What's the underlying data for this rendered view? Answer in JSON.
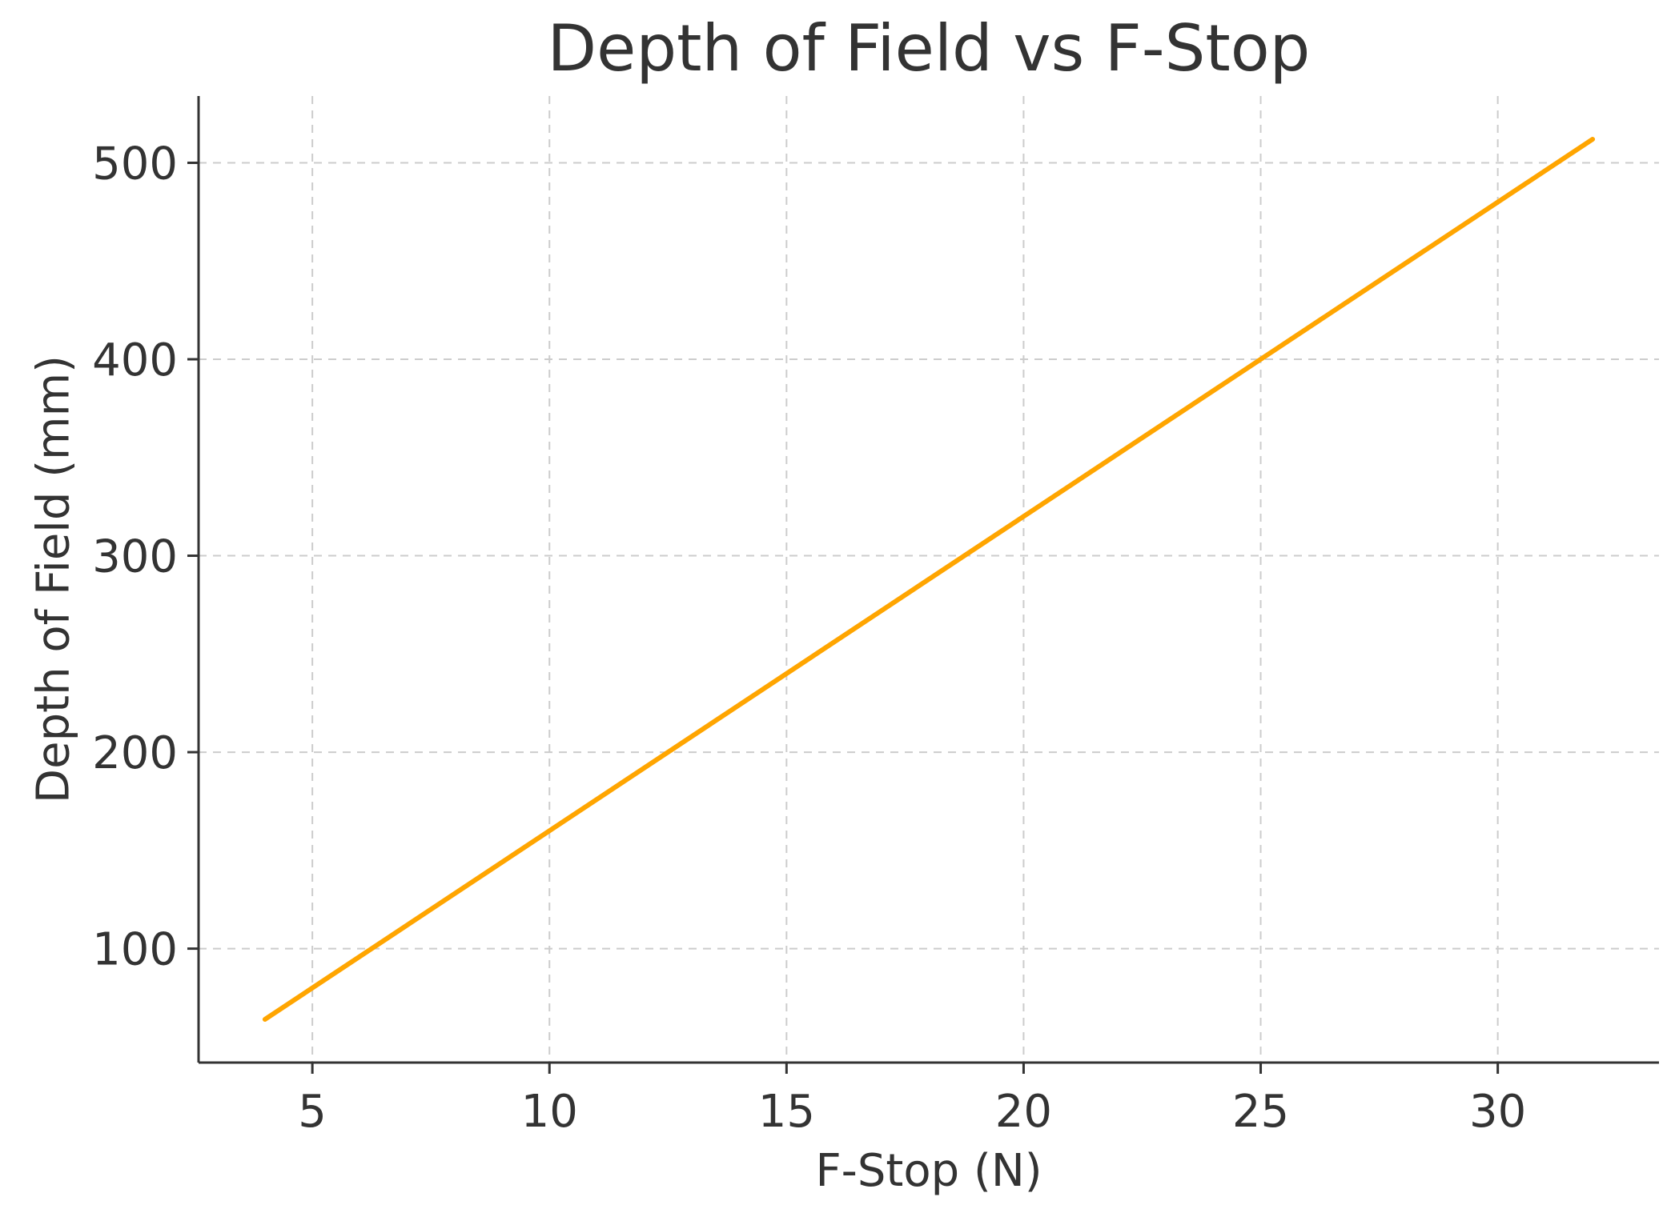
{
  "chart_data": {
    "type": "line",
    "title": "Depth of Field vs F-Stop",
    "xlabel": "F-Stop (N)",
    "ylabel": "Depth of Field (mm)",
    "xlim": [
      2.6,
      33.4
    ],
    "ylim": [
      42,
      534
    ],
    "xticks": [
      5,
      10,
      15,
      20,
      25,
      30
    ],
    "yticks": [
      100,
      200,
      300,
      400,
      500
    ],
    "grid": true,
    "series": [
      {
        "color": "#ffa500",
        "x": [
          4,
          32
        ],
        "y": [
          64,
          512
        ]
      }
    ]
  }
}
